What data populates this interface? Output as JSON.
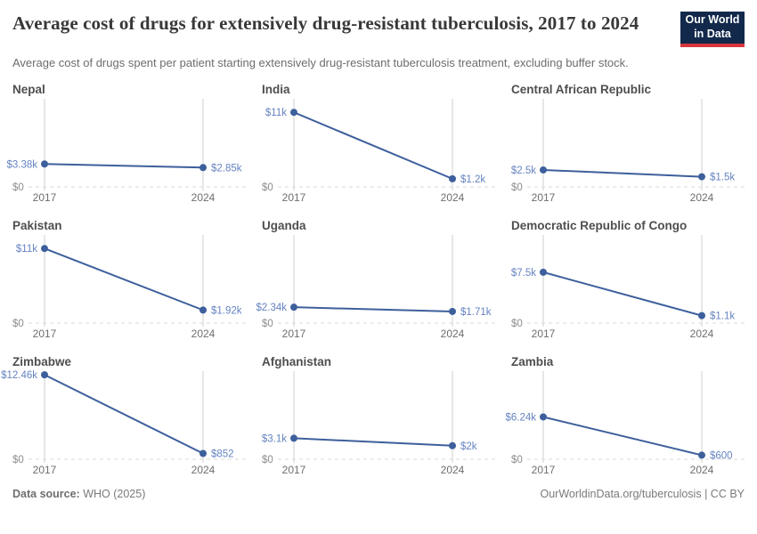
{
  "header": {
    "title": "Average cost of drugs for extensively drug-resistant tuberculosis, 2017 to 2024",
    "subtitle": "Average cost of drugs spent per patient starting extensively drug-resistant tuberculosis treatment, excluding buffer stock.",
    "logo": {
      "line1": "Our World",
      "line2": "in Data",
      "bg_color": "#12294b",
      "accent_color": "#d8353f"
    }
  },
  "chart_data": {
    "type": "line",
    "facets_layout": "3x3 small multiples, shared y scale",
    "x": [
      2017,
      2024
    ],
    "x_tick_labels": [
      "2017",
      "2024"
    ],
    "ylim": [
      0,
      13000
    ],
    "zero_label": "$0",
    "grid": "vertical gridline at each year; dashed baseline at $0",
    "legend_position": "none",
    "series": [
      {
        "name": "Nepal",
        "values": [
          3380,
          2850
        ],
        "point_labels": [
          "$3.38k",
          "$2.85k"
        ]
      },
      {
        "name": "India",
        "values": [
          11000,
          1200
        ],
        "point_labels": [
          "$11k",
          "$1.2k"
        ]
      },
      {
        "name": "Central African Republic",
        "values": [
          2500,
          1500
        ],
        "point_labels": [
          "$2.5k",
          "$1.5k"
        ]
      },
      {
        "name": "Pakistan",
        "values": [
          11000,
          1920
        ],
        "point_labels": [
          "$11k",
          "$1.92k"
        ]
      },
      {
        "name": "Uganda",
        "values": [
          2340,
          1710
        ],
        "point_labels": [
          "$2.34k",
          "$1.71k"
        ]
      },
      {
        "name": "Democratic Republic of Congo",
        "values": [
          7500,
          1100
        ],
        "point_labels": [
          "$7.5k",
          "$1.1k"
        ]
      },
      {
        "name": "Zimbabwe",
        "values": [
          12460,
          852
        ],
        "point_labels": [
          "$12.46k",
          "$852"
        ]
      },
      {
        "name": "Afghanistan",
        "values": [
          3100,
          2000
        ],
        "point_labels": [
          "$3.1k",
          "$2k"
        ]
      },
      {
        "name": "Zambia",
        "values": [
          6240,
          600
        ],
        "point_labels": [
          "$6.24k",
          "$600"
        ]
      }
    ],
    "colors": {
      "line": "#3d5f9c",
      "point": "#3d5f9c",
      "value_label": "#6583c1",
      "gridline": "#cfcfcf",
      "zero_line": "#d8d8d8",
      "zero_label": "#8c8c8c",
      "year_label": "#6e6e6e"
    }
  },
  "footer": {
    "source_label": "Data source:",
    "source_value": " WHO (2025)",
    "link": "OurWorldinData.org/tuberculosis",
    "license": " | CC BY"
  }
}
